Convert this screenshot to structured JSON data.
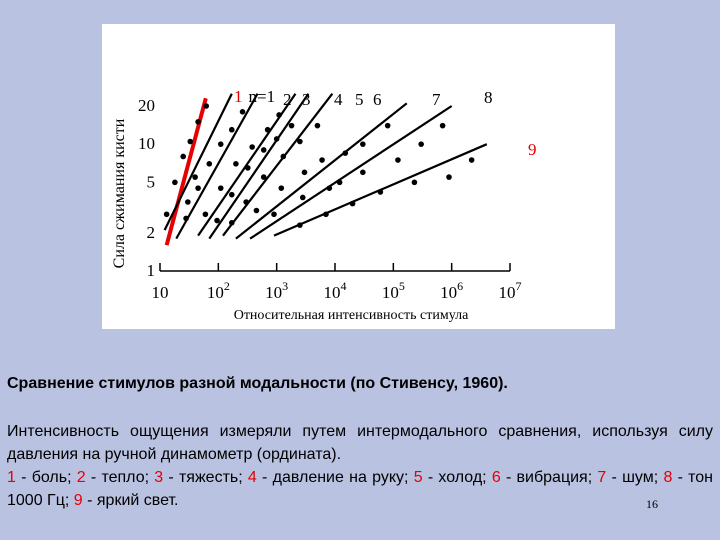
{
  "chart_data": {
    "type": "line",
    "ylabel": "Сила сжимания кисти",
    "xlabel": "Относительная интенсивность стимула",
    "x_scale": "log",
    "y_scale": "log",
    "x_ticks": [
      {
        "value": 10,
        "base": "10",
        "exp": ""
      },
      {
        "value": 100,
        "base": "10",
        "exp": "2"
      },
      {
        "value": 1000,
        "base": "10",
        "exp": "3"
      },
      {
        "value": 10000,
        "base": "10",
        "exp": "4"
      },
      {
        "value": 100000,
        "base": "10",
        "exp": "5"
      },
      {
        "value": 1000000,
        "base": "10",
        "exp": "6"
      },
      {
        "value": 10000000,
        "base": "10",
        "exp": "7"
      }
    ],
    "y_ticks": [
      {
        "value": 1,
        "label": "1"
      },
      {
        "value": 2,
        "label": "2"
      },
      {
        "value": 5,
        "label": "5"
      },
      {
        "value": 10,
        "label": "10"
      },
      {
        "value": 20,
        "label": "20"
      }
    ],
    "xlim": [
      10,
      10000000
    ],
    "ylim": [
      1,
      20
    ],
    "highlight_color": "#e60000",
    "series": [
      {
        "name": "n=1",
        "label_prefix": "1",
        "highlight": true,
        "line": [
          [
            13,
            1.6
          ],
          [
            61,
            23
          ]
        ],
        "points": [
          [
            30,
            3.5
          ],
          [
            40,
            5.5
          ]
        ]
      },
      {
        "name": "2",
        "highlight": false,
        "line": [
          [
            12,
            2.1
          ],
          [
            170,
            25
          ]
        ],
        "points": [
          [
            13,
            2.8
          ],
          [
            18,
            5
          ],
          [
            25,
            8
          ],
          [
            33,
            10.5
          ],
          [
            45,
            15
          ],
          [
            62,
            20
          ]
        ]
      },
      {
        "name": "3",
        "highlight": false,
        "line": [
          [
            19,
            1.8
          ],
          [
            470,
            25
          ]
        ],
        "points": [
          [
            28,
            2.6
          ],
          [
            45,
            4.5
          ],
          [
            70,
            7
          ],
          [
            110,
            10
          ],
          [
            170,
            13
          ],
          [
            260,
            18
          ]
        ]
      },
      {
        "name": "4",
        "highlight": false,
        "line": [
          [
            45,
            1.9
          ],
          [
            2100,
            25
          ]
        ],
        "points": [
          [
            60,
            2.8
          ],
          [
            110,
            4.5
          ],
          [
            200,
            7
          ],
          [
            380,
            9.5
          ],
          [
            700,
            13
          ],
          [
            1100,
            17
          ]
        ]
      },
      {
        "name": "5",
        "highlight": false,
        "line": [
          [
            70,
            1.8
          ],
          [
            3500,
            25
          ]
        ],
        "points": [
          [
            95,
            2.5
          ],
          [
            170,
            4
          ],
          [
            320,
            6.5
          ],
          [
            600,
            9
          ],
          [
            1000,
            11
          ],
          [
            1800,
            14
          ]
        ]
      },
      {
        "name": "6",
        "highlight": false,
        "line": [
          [
            120,
            1.9
          ],
          [
            9000,
            25
          ]
        ],
        "points": [
          [
            170,
            2.4
          ],
          [
            300,
            3.5
          ],
          [
            600,
            5.5
          ],
          [
            1300,
            8
          ],
          [
            2500,
            10.5
          ],
          [
            5000,
            14
          ]
        ]
      },
      {
        "name": "7",
        "highlight": false,
        "line": [
          [
            200,
            1.8
          ],
          [
            170000,
            21
          ]
        ],
        "points": [
          [
            450,
            3
          ],
          [
            1200,
            4.5
          ],
          [
            3000,
            6
          ],
          [
            6000,
            7.5
          ],
          [
            15000,
            8.5
          ],
          [
            30000,
            10
          ],
          [
            80000,
            14
          ]
        ]
      },
      {
        "name": "8",
        "highlight": false,
        "line": [
          [
            350,
            1.8
          ],
          [
            1000000,
            20
          ]
        ],
        "points": [
          [
            900,
            2.8
          ],
          [
            2800,
            3.8
          ],
          [
            8000,
            4.5
          ],
          [
            12000,
            5
          ],
          [
            30000,
            6
          ],
          [
            120000,
            7.5
          ],
          [
            300000,
            10
          ],
          [
            700000,
            14
          ]
        ]
      },
      {
        "name": "9",
        "highlight": true,
        "line": [
          [
            900,
            1.9
          ],
          [
            4000000,
            10
          ]
        ],
        "points": [
          [
            2500,
            2.3
          ],
          [
            7000,
            2.8
          ],
          [
            20000,
            3.4
          ],
          [
            60000,
            4.2
          ],
          [
            230000,
            5
          ],
          [
            900000,
            5.5
          ],
          [
            2200000,
            7.5
          ]
        ]
      }
    ]
  },
  "caption": {
    "title": "Сравнение стимулов разной модальности (по Стивенсу, 1960).",
    "intro": "Интенсивность ощущения измеряли путем интермодального сравнения, используя силу давления на ручной динамометр (ордината).",
    "legend_items": [
      {
        "num": "1",
        "text": " - боль; "
      },
      {
        "num": "2",
        "text": " - тепло; "
      },
      {
        "num": "3",
        "text": " - тяжесть; "
      },
      {
        "num": "4",
        "text": " - давление на руку; "
      },
      {
        "num": "5",
        "text": " - холод; "
      },
      {
        "num": "6",
        "text": " - вибрация; "
      },
      {
        "num": "7",
        "text": " - шум; "
      },
      {
        "num": "8",
        "text": " - тон 1000 Гц; "
      },
      {
        "num": "9",
        "text": " - яркий свет."
      }
    ]
  },
  "page_number": "16"
}
